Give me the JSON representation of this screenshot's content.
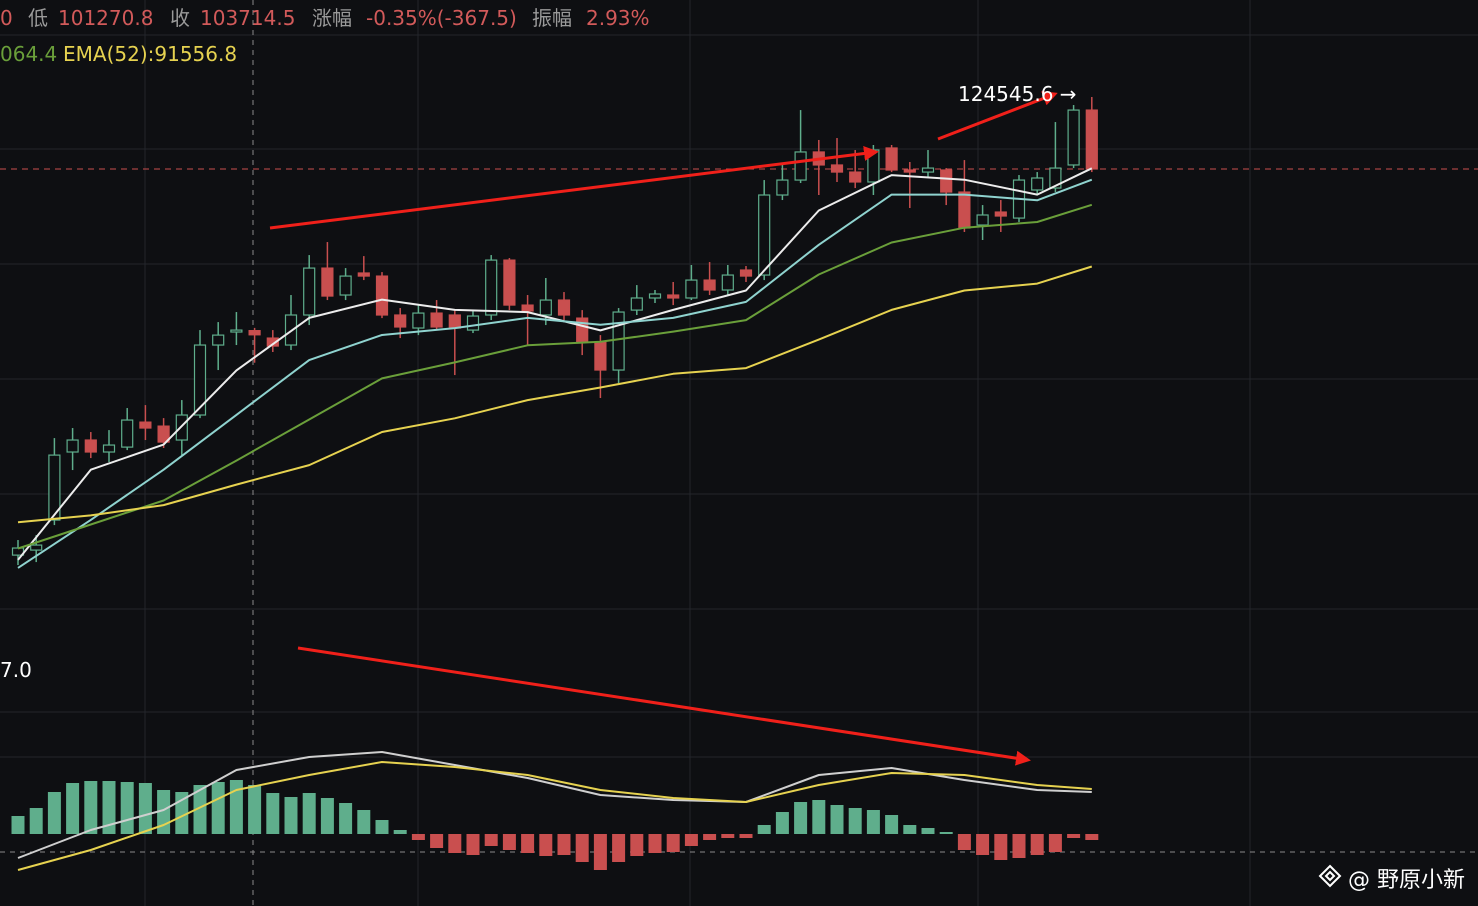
{
  "chart_data": {
    "type": "candlestick",
    "header": {
      "items": [
        "0",
        "低",
        "101270.8",
        "收",
        "103714.5",
        "涨幅",
        "-0.35%(-367.5)",
        "振幅",
        "2.93%"
      ]
    },
    "indicator_labels": [
      "064.4",
      "EMA(52):91556.8"
    ],
    "max_label": "124545.6 →",
    "macd_label": "7.0",
    "watermark": "@ 野原小新",
    "ylim": [
      79700,
      133040
    ],
    "up_color": "#5fae8c",
    "down_color": "#c94f4f",
    "last_price": 118240,
    "open": [
      84420,
      84860,
      87490,
      93450,
      94500,
      93450,
      93880,
      96070,
      95720,
      94500,
      96690,
      102820,
      103960,
      104082,
      103430,
      102820,
      105450,
      109560,
      107200,
      109130,
      108860,
      105450,
      104310,
      105620,
      105450,
      104130,
      105450,
      110260,
      106320,
      105450,
      106760,
      105180,
      103080,
      100630,
      105880,
      106940,
      107200,
      106940,
      108510,
      107640,
      109390,
      108950,
      115960,
      117270,
      119730,
      118590,
      117970,
      117100,
      120080,
      118150,
      117970,
      118150,
      116220,
      113330,
      114470,
      113940,
      116400,
      116570,
      118590,
      123400
    ],
    "high": [
      85740,
      86170,
      94670,
      95550,
      95200,
      95370,
      97300,
      97560,
      96420,
      98000,
      104130,
      104830,
      105710,
      104320.8,
      104130,
      107200,
      110700,
      111840,
      109560,
      110610,
      109210,
      106060,
      106320,
      106760,
      105880,
      105880,
      110700,
      110440,
      107200,
      108690,
      107460,
      105880,
      103690,
      106060,
      108070,
      107640,
      108340,
      109830,
      110090,
      109830,
      109740,
      117270,
      118590,
      123400,
      120780,
      120950,
      119900,
      120340,
      120340,
      118850,
      119900,
      118320,
      119020,
      115080,
      115520,
      117710,
      117970,
      122350,
      123840,
      124545.6
    ],
    "low": [
      83550,
      83810,
      87050,
      91870,
      92920,
      92570,
      93620,
      94500,
      93800,
      93180,
      96420,
      100630,
      102820,
      101270.8,
      102210,
      102380,
      104570,
      106760,
      106760,
      108510,
      105180,
      103430,
      103690,
      104130,
      100190,
      103870,
      105010,
      105880,
      102820,
      104570,
      105010,
      101940,
      98180,
      99490,
      105450,
      106500,
      106320,
      106760,
      107200,
      107200,
      108340,
      108510,
      115520,
      117010,
      115960,
      117100,
      116570,
      115960,
      117970,
      114820,
      117450,
      115080,
      112720,
      112020,
      112720,
      113590,
      115960,
      116220,
      118320,
      117970
    ],
    "close": [
      85040,
      85300,
      93180,
      94500,
      93450,
      94060,
      96250,
      95550,
      94320,
      96690,
      102820,
      103690,
      104130,
      103714.5,
      102730,
      105450,
      109560,
      107110,
      108860,
      108860,
      105450,
      104400,
      105620,
      104400,
      104310,
      105360,
      110260,
      106320,
      105800,
      106760,
      105450,
      103080,
      100630,
      105710,
      106940,
      107290,
      106940,
      108510,
      107640,
      108950,
      108860,
      115960,
      117270,
      119730,
      118590,
      117970,
      117100,
      119900,
      118150,
      117970,
      118320,
      116220,
      113070,
      114210,
      114120,
      117270,
      117450,
      118320,
      123400,
      118240
    ],
    "series": [
      {
        "color": "#ececec",
        "x": [
          0,
          4,
          8,
          12,
          16,
          20,
          24,
          28,
          32,
          36,
          40,
          44,
          48,
          52,
          56,
          59
        ],
        "values": [
          84000,
          91900,
          94100,
          100600,
          105200,
          106800,
          105900,
          105700,
          104100,
          105900,
          107600,
          114600,
          117700,
          117300,
          116000,
          118300
        ]
      },
      {
        "color": "#8fd3cf",
        "x": [
          0,
          4,
          8,
          12,
          16,
          20,
          24,
          28,
          32,
          36,
          40,
          44,
          48,
          52,
          56,
          59
        ],
        "values": [
          83300,
          87500,
          91900,
          96700,
          101500,
          103700,
          104300,
          105200,
          104600,
          105200,
          106600,
          111600,
          116000,
          116000,
          115500,
          117300
        ]
      },
      {
        "color": "#6a9f3a",
        "x": [
          0,
          4,
          8,
          12,
          16,
          20,
          24,
          28,
          32,
          36,
          40,
          44,
          48,
          52,
          56,
          59
        ],
        "values": [
          85000,
          87100,
          89200,
          92700,
          96300,
          99900,
          101300,
          102800,
          103100,
          104000,
          105000,
          109000,
          111800,
          113100,
          113600,
          115100
        ]
      },
      {
        "color": "#e6d250",
        "x": [
          0,
          4,
          8,
          12,
          16,
          20,
          24,
          28,
          32,
          36,
          40,
          44,
          48,
          52,
          56,
          59
        ],
        "values": [
          87300,
          87900,
          88800,
          90600,
          92300,
          95200,
          96400,
          98000,
          99100,
          100300,
          100800,
          103300,
          105900,
          107600,
          108200,
          109700
        ]
      }
    ],
    "macd": {
      "ylim": [
        -5,
        15
      ],
      "histogram": [
        1.8,
        2.6,
        4.2,
        5.1,
        5.3,
        5.3,
        5.2,
        5.1,
        4.4,
        4.2,
        4.9,
        5.2,
        5.4,
        4.9,
        4.1,
        3.7,
        4.1,
        3.6,
        3.1,
        2.4,
        1.4,
        0.4,
        -0.6,
        -1.4,
        -1.9,
        -2.1,
        -1.2,
        -1.6,
        -1.9,
        -2.2,
        -2.1,
        -2.8,
        -3.6,
        -2.8,
        -2.2,
        -1.9,
        -1.8,
        -1.2,
        -0.6,
        -0.4,
        -0.4,
        0.9,
        2.2,
        3.2,
        3.4,
        2.9,
        2.6,
        2.4,
        1.9,
        0.9,
        0.6,
        0.2,
        -1.6,
        -2.1,
        -2.6,
        -2.4,
        -2.1,
        -1.8,
        -0.4,
        -0.6
      ],
      "dif": {
        "color": "#cfcfcf",
        "x": [
          0,
          4,
          8,
          12,
          16,
          20,
          24,
          28,
          32,
          36,
          40,
          44,
          48,
          52,
          56,
          59
        ],
        "values": [
          -2.4,
          0.4,
          2.4,
          6.4,
          7.7,
          8.2,
          6.9,
          5.6,
          3.9,
          3.4,
          3.2,
          5.9,
          6.6,
          5.4,
          4.4,
          4.2
        ]
      },
      "dea": {
        "color": "#e6d250",
        "x": [
          0,
          4,
          8,
          12,
          16,
          20,
          24,
          28,
          32,
          36,
          40,
          44,
          48,
          52,
          56,
          59
        ],
        "values": [
          -3.6,
          -1.6,
          0.9,
          4.4,
          5.9,
          7.2,
          6.7,
          5.9,
          4.4,
          3.6,
          3.2,
          4.9,
          6.1,
          5.9,
          4.9,
          4.5
        ]
      }
    }
  }
}
